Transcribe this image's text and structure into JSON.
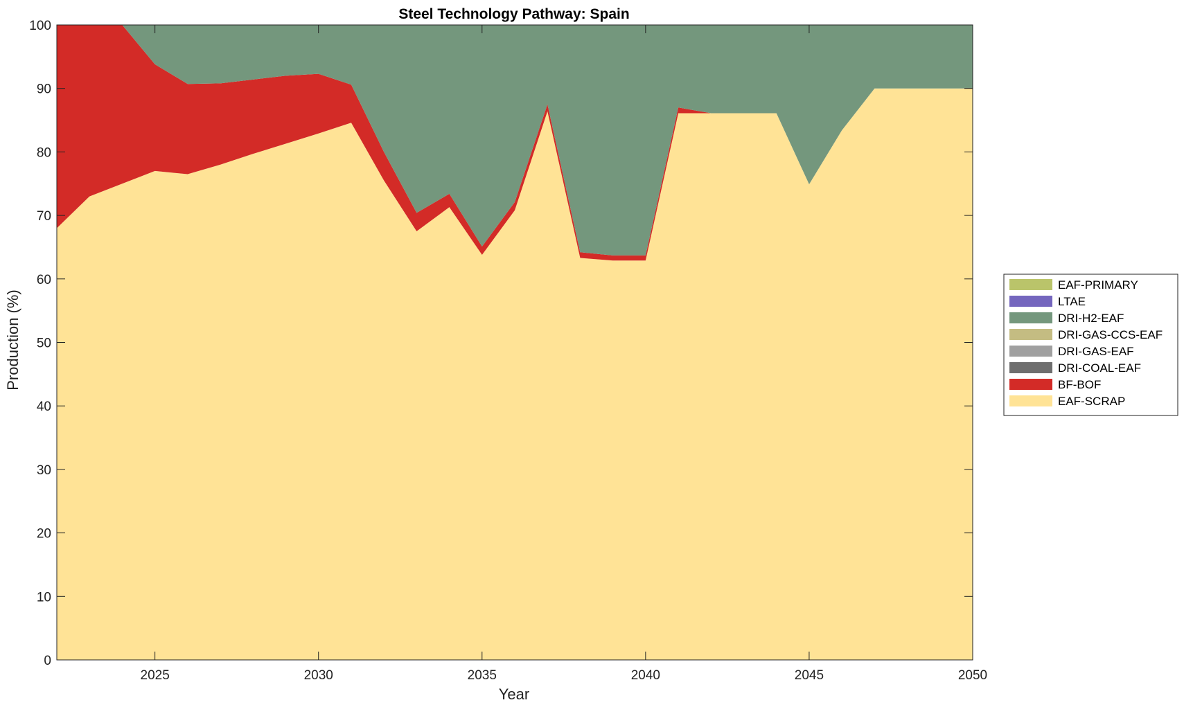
{
  "chart_data": {
    "type": "area",
    "stacked": true,
    "title": "Steel Technology Pathway: Spain",
    "xlabel": "Year",
    "ylabel": "Production (%)",
    "xlim": [
      2022,
      2050
    ],
    "ylim": [
      0,
      100
    ],
    "xticks": [
      2025,
      2030,
      2035,
      2040,
      2045,
      2050
    ],
    "yticks": [
      0,
      10,
      20,
      30,
      40,
      50,
      60,
      70,
      80,
      90,
      100
    ],
    "grid": false,
    "legend_position": "right",
    "x": [
      2022,
      2023,
      2024,
      2025,
      2026,
      2027,
      2028,
      2029,
      2030,
      2031,
      2032,
      2033,
      2034,
      2035,
      2036,
      2037,
      2038,
      2039,
      2040,
      2041,
      2042,
      2043,
      2044,
      2045,
      2046,
      2047,
      2048,
      2049,
      2050
    ],
    "series": [
      {
        "name": "EAF-SCRAP",
        "color": "#FFE396",
        "values": [
          68,
          73,
          75,
          77,
          76.5,
          78,
          79.7,
          81.3,
          82.9,
          84.6,
          75.5,
          67.5,
          71.3,
          63.8,
          70.8,
          86.4,
          63.3,
          62.9,
          62.9,
          86.1,
          86.1,
          86.1,
          86.1,
          74.9,
          83.4,
          90,
          90,
          90,
          90
        ]
      },
      {
        "name": "BF-BOF",
        "color": "#D32B27",
        "values": [
          32,
          27,
          25,
          16.8,
          14.2,
          12.8,
          11.7,
          10.7,
          9.4,
          6,
          4.5,
          2.9,
          2.1,
          1.3,
          1.3,
          1.1,
          0.9,
          0.8,
          0.8,
          0.9,
          0,
          0,
          0,
          0,
          0,
          0,
          0,
          0,
          0
        ]
      },
      {
        "name": "DRI-COAL-EAF",
        "color": "#6E6E6E",
        "values": [
          0,
          0,
          0,
          0,
          0,
          0,
          0,
          0,
          0,
          0,
          0,
          0,
          0,
          0,
          0,
          0,
          0,
          0,
          0,
          0,
          0,
          0,
          0,
          0,
          0,
          0,
          0,
          0,
          0
        ]
      },
      {
        "name": "DRI-GAS-EAF",
        "color": "#A0A0A0",
        "values": [
          0,
          0,
          0,
          0,
          0,
          0,
          0,
          0,
          0,
          0,
          0,
          0,
          0,
          0,
          0,
          0,
          0,
          0,
          0,
          0,
          0,
          0,
          0,
          0,
          0,
          0,
          0,
          0,
          0
        ]
      },
      {
        "name": "DRI-GAS-CCS-EAF",
        "color": "#C4BC82",
        "values": [
          0,
          0,
          0,
          0,
          0,
          0,
          0,
          0,
          0,
          0,
          0,
          0,
          0,
          0,
          0,
          0,
          0,
          0,
          0,
          0,
          0,
          0,
          0,
          0,
          0,
          0,
          0,
          0,
          0
        ]
      },
      {
        "name": "DRI-H2-EAF",
        "color": "#74977D",
        "values": [
          0,
          0,
          0,
          6.2,
          9.3,
          9.2,
          8.6,
          8,
          7.7,
          9.4,
          20,
          29.6,
          26.6,
          34.9,
          27.9,
          12.5,
          35.8,
          36.3,
          36.3,
          13,
          13.9,
          13.9,
          13.9,
          25.1,
          16.6,
          10,
          10,
          10,
          10
        ]
      },
      {
        "name": "LTAE",
        "color": "#7466BE",
        "values": [
          0,
          0,
          0,
          0,
          0,
          0,
          0,
          0,
          0,
          0,
          0,
          0,
          0,
          0,
          0,
          0,
          0,
          0,
          0,
          0,
          0,
          0,
          0,
          0,
          0,
          0,
          0,
          0,
          0
        ]
      },
      {
        "name": "EAF-PRIMARY",
        "color": "#BAC46A",
        "values": [
          0,
          0,
          0,
          0,
          0,
          0,
          0,
          0,
          0,
          0,
          0,
          0,
          0,
          0,
          0,
          0,
          0,
          0,
          0,
          0,
          0,
          0,
          0,
          0,
          0,
          0,
          0,
          0,
          0
        ]
      }
    ],
    "legend": [
      "EAF-PRIMARY",
      "LTAE",
      "DRI-H2-EAF",
      "DRI-GAS-CCS-EAF",
      "DRI-GAS-EAF",
      "DRI-COAL-EAF",
      "BF-BOF",
      "EAF-SCRAP"
    ]
  }
}
